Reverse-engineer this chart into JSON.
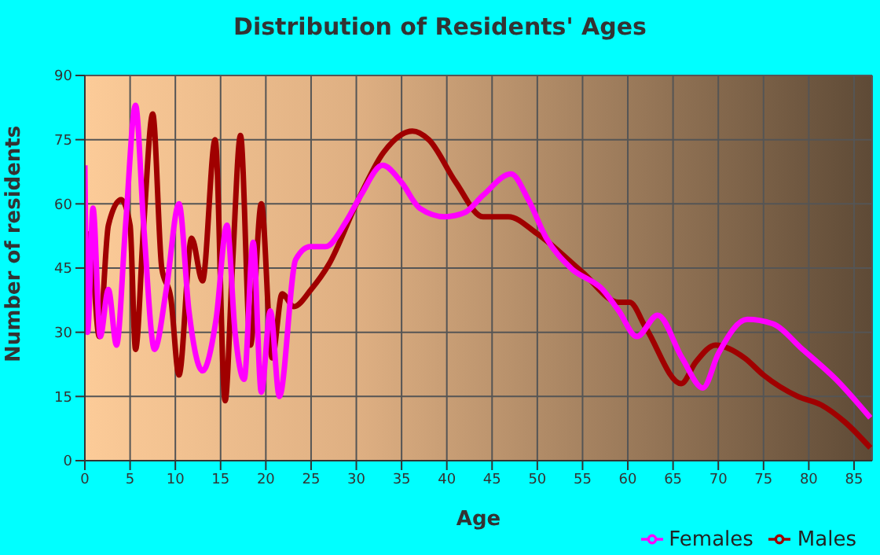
{
  "chart_data": {
    "type": "line",
    "title": "Distribution of Residents' Ages",
    "xlabel": "Age",
    "ylabel": "Number of residents",
    "xlim": [
      0,
      87
    ],
    "xticks": [
      0,
      5,
      10,
      15,
      20,
      25,
      30,
      35,
      40,
      45,
      50,
      55,
      60,
      65,
      70,
      75,
      80,
      85
    ],
    "ylim": [
      0,
      90
    ],
    "yticks": [
      0,
      15,
      30,
      45,
      60,
      75,
      90
    ],
    "grid": true,
    "legend": "bottom right",
    "marker": "none",
    "line_style": "solid",
    "series": [
      {
        "name": "Males",
        "color": "#a00000",
        "x": [
          0,
          0.5,
          1.6,
          2.6,
          4,
          5,
          5.6,
          6.5,
          7.5,
          8.5,
          9.5,
          10.4,
          11.8,
          13,
          14.4,
          15.5,
          16.3,
          17.2,
          18.3,
          19.5,
          20.7,
          21.8,
          23.1,
          25,
          27,
          30,
          33,
          36.2,
          38,
          41,
          44,
          46.8,
          50,
          55,
          59,
          60.2,
          62,
          65.9,
          67.5,
          69.7,
          72.9,
          75,
          78.8,
          81.4,
          84,
          86.8
        ],
        "values": [
          46,
          53,
          29,
          55,
          61,
          55,
          26,
          55,
          81,
          45,
          38,
          20,
          52,
          42,
          75,
          14,
          45,
          76,
          27,
          60,
          24,
          39,
          36,
          40,
          46,
          60,
          72,
          77,
          75,
          65,
          57,
          57,
          53,
          44,
          37,
          37,
          31,
          18,
          23,
          27,
          24,
          20,
          15,
          13,
          9,
          3
        ]
      },
      {
        "name": "Females",
        "color": "#ff00ff",
        "x": [
          0,
          0.3,
          0.9,
          1.7,
          2.6,
          3.5,
          4.5,
          5.6,
          6.5,
          7.7,
          9,
          10.4,
          11.5,
          13,
          14.5,
          15.7,
          16.6,
          17.6,
          18.6,
          19.5,
          20.5,
          21.5,
          23.3,
          24.9,
          26.6,
          28.9,
          30.5,
          32.9,
          35,
          37,
          39.8,
          42,
          44,
          47.1,
          49,
          51,
          53.7,
          57.2,
          59,
          61,
          63.3,
          66,
          68.3,
          70,
          73.2,
          76,
          79.3,
          83,
          86.8
        ],
        "values": [
          69,
          30,
          59,
          29,
          40,
          27,
          55,
          83,
          55,
          26,
          40,
          60,
          35,
          21,
          33,
          55,
          30,
          19,
          51,
          16,
          35,
          15,
          47,
          50,
          50,
          56,
          62,
          69,
          65,
          59,
          57,
          58,
          62,
          67,
          61,
          52,
          45,
          40,
          35,
          29,
          34,
          24,
          17,
          25,
          33,
          32,
          26,
          19,
          10
        ]
      }
    ]
  }
}
